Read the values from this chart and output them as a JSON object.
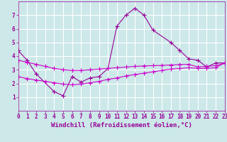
{
  "bg_color": "#cce8e8",
  "grid_color": "#ffffff",
  "line_color": "#990099",
  "line_color2": "#cc00cc",
  "xlabel": "Windchill (Refroidissement éolien,°C)",
  "ylim": [
    0,
    8
  ],
  "xlim": [
    0,
    23
  ],
  "yticks": [
    1,
    2,
    3,
    4,
    5,
    6,
    7
  ],
  "xticks": [
    0,
    1,
    2,
    3,
    4,
    5,
    6,
    7,
    8,
    9,
    10,
    11,
    12,
    13,
    14,
    15,
    16,
    17,
    18,
    19,
    20,
    21,
    22,
    23
  ],
  "series1_x": [
    0,
    1,
    2,
    4,
    5,
    6,
    7,
    8,
    9,
    10,
    11,
    12,
    13,
    14,
    15,
    17,
    18,
    19,
    20,
    21,
    22,
    23
  ],
  "series1_y": [
    4.4,
    3.7,
    2.7,
    1.4,
    1.1,
    2.5,
    2.1,
    2.4,
    2.5,
    3.1,
    6.2,
    7.0,
    7.5,
    7.0,
    5.9,
    5.0,
    4.4,
    3.8,
    3.7,
    3.2,
    3.5,
    3.5
  ],
  "series2_x": [
    0,
    1,
    2,
    3,
    4,
    5,
    6,
    7,
    8,
    9,
    10,
    11,
    12,
    13,
    14,
    15,
    16,
    17,
    18,
    19,
    20,
    21,
    22,
    23
  ],
  "series2_y": [
    3.7,
    3.55,
    3.4,
    3.25,
    3.1,
    3.0,
    2.95,
    2.95,
    3.0,
    3.05,
    3.1,
    3.15,
    3.2,
    3.25,
    3.28,
    3.3,
    3.32,
    3.35,
    3.38,
    3.4,
    3.2,
    3.25,
    3.3,
    3.5
  ],
  "series3_x": [
    0,
    1,
    2,
    3,
    4,
    5,
    6,
    7,
    8,
    9,
    10,
    11,
    12,
    13,
    14,
    15,
    16,
    17,
    18,
    19,
    20,
    21,
    22,
    23
  ],
  "series3_y": [
    2.5,
    2.35,
    2.25,
    2.15,
    2.05,
    1.95,
    1.9,
    1.95,
    2.05,
    2.15,
    2.3,
    2.4,
    2.55,
    2.65,
    2.75,
    2.85,
    2.95,
    3.05,
    3.1,
    3.15,
    3.1,
    3.1,
    3.15,
    3.5
  ],
  "marker": "+",
  "markersize": 4,
  "linewidth": 0.8,
  "xlabel_fontsize": 6.5,
  "tick_fontsize": 5.5
}
